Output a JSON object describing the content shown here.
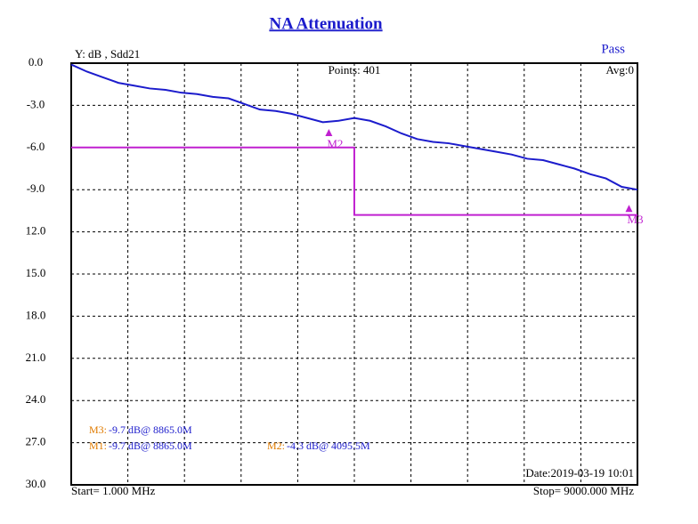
{
  "chart_data": {
    "type": "line",
    "title": "NA Attenuation",
    "y_label": "Y: dB , Sdd21",
    "status": "Pass",
    "points_text": "Points: 401",
    "avg_text": "Avg:0",
    "start_text": "Start= 1.000 MHz",
    "stop_text": "Stop=  9000.000 MHz",
    "date_text": "Date:2019-03-19 10:01",
    "xlim": [
      1,
      9000
    ],
    "ylim": [
      -30,
      0
    ],
    "xticks": [
      1,
      900.9,
      1800.8,
      2700.7,
      3600.6,
      4500.5,
      5400.4,
      6300.3,
      7200.2,
      8100.1,
      9000
    ],
    "yticks": [
      {
        "value": 0,
        "label": "0.0"
      },
      {
        "value": -3,
        "label": "-3.0"
      },
      {
        "value": -6,
        "label": "-6.0"
      },
      {
        "value": -9,
        "label": "-9.0"
      },
      {
        "value": -12,
        "label": "12.0"
      },
      {
        "value": -15,
        "label": "15.0"
      },
      {
        "value": -18,
        "label": "18.0"
      },
      {
        "value": -21,
        "label": "21.0"
      },
      {
        "value": -24,
        "label": "24.0"
      },
      {
        "value": -27,
        "label": "27.0"
      },
      {
        "value": -30,
        "label": "30.0"
      }
    ],
    "grid": true,
    "series": [
      {
        "color": "#1c1ccc",
        "x": [
          1,
          250,
          500,
          750,
          1000,
          1250,
          1500,
          1750,
          2000,
          2250,
          2500,
          2750,
          3000,
          3250,
          3500,
          3750,
          4000,
          4250,
          4500,
          4750,
          5000,
          5250,
          5500,
          5750,
          6000,
          6250,
          6500,
          6750,
          7000,
          7250,
          7500,
          7750,
          8000,
          8250,
          8500,
          8750,
          9000
        ],
        "values": [
          -0.1,
          -0.6,
          -1.0,
          -1.4,
          -1.6,
          -1.8,
          -1.9,
          -2.1,
          -2.2,
          -2.4,
          -2.5,
          -2.9,
          -3.3,
          -3.4,
          -3.6,
          -3.9,
          -4.2,
          -4.1,
          -3.9,
          -4.1,
          -4.5,
          -5.0,
          -5.4,
          -5.6,
          -5.7,
          -5.9,
          -6.1,
          -6.3,
          -6.5,
          -6.8,
          -6.9,
          -7.2,
          -7.5,
          -7.9,
          -8.2,
          -8.8,
          -9.0
        ]
      }
    ],
    "limit": {
      "color": "#c020d0",
      "x": [
        1,
        4500,
        4500,
        9000
      ],
      "values": [
        -6,
        -6,
        -10.8,
        -10.8
      ]
    },
    "markers": [
      {
        "label": "M2",
        "x": 4095.5,
        "value": -4.3
      },
      {
        "label": "M3",
        "x": 8865,
        "value": -9.7
      }
    ],
    "readouts": [
      {
        "name": "M3:",
        "text": "-9.7 dB@ 8865.0M"
      },
      {
        "name": "M1:",
        "text": "-9.7 dB@ 8865.0M"
      },
      {
        "name": "M2:",
        "text": "-4.3 dB@ 4095.5M"
      }
    ]
  }
}
